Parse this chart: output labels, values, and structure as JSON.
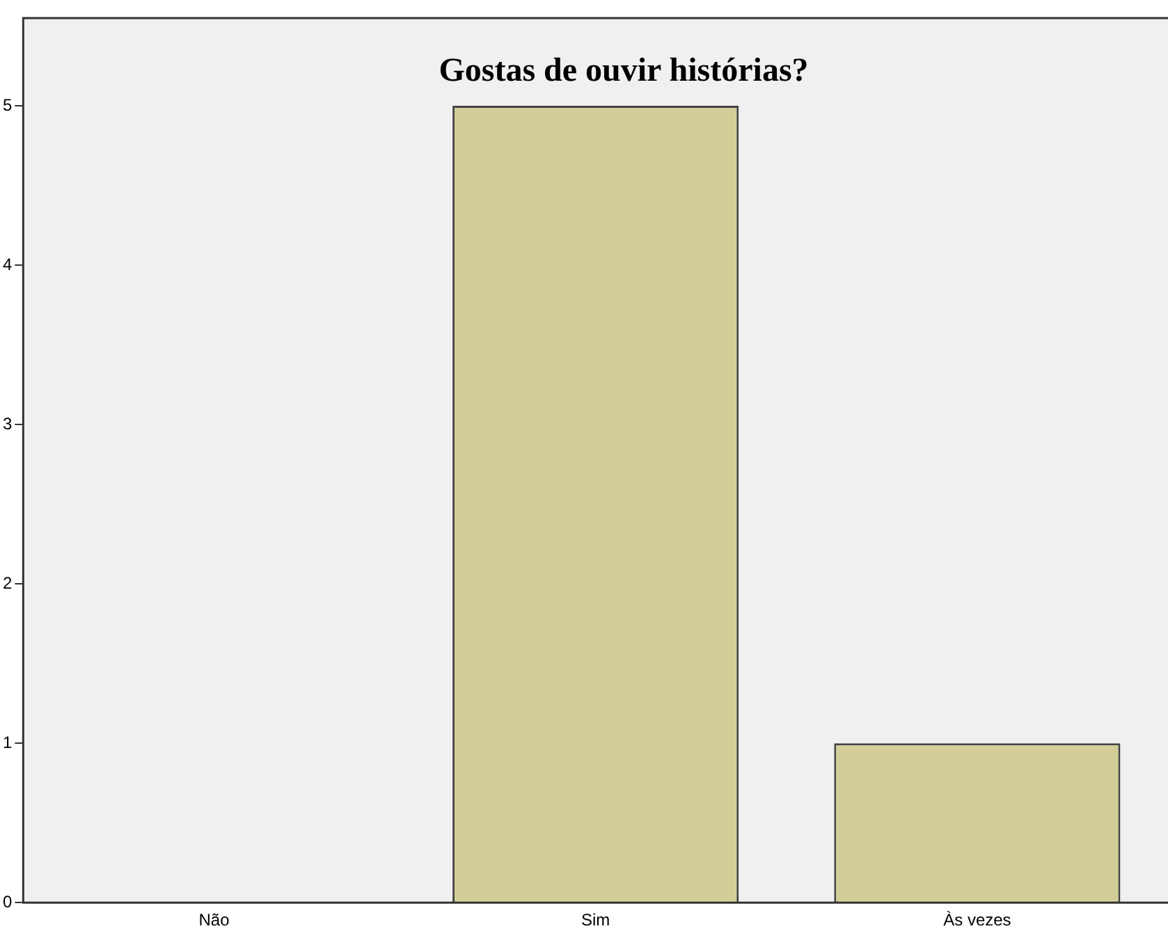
{
  "chart_data": {
    "type": "bar",
    "title": "Gostas de ouvir histórias?",
    "categories": [
      "Não",
      "Sim",
      "Às vezes"
    ],
    "values": [
      0,
      5,
      1
    ],
    "color": "#d3ce98",
    "ylim": [
      0,
      5.55
    ],
    "yticks": [
      0,
      1,
      2,
      3,
      4,
      5
    ],
    "grid": false,
    "legend": false
  }
}
